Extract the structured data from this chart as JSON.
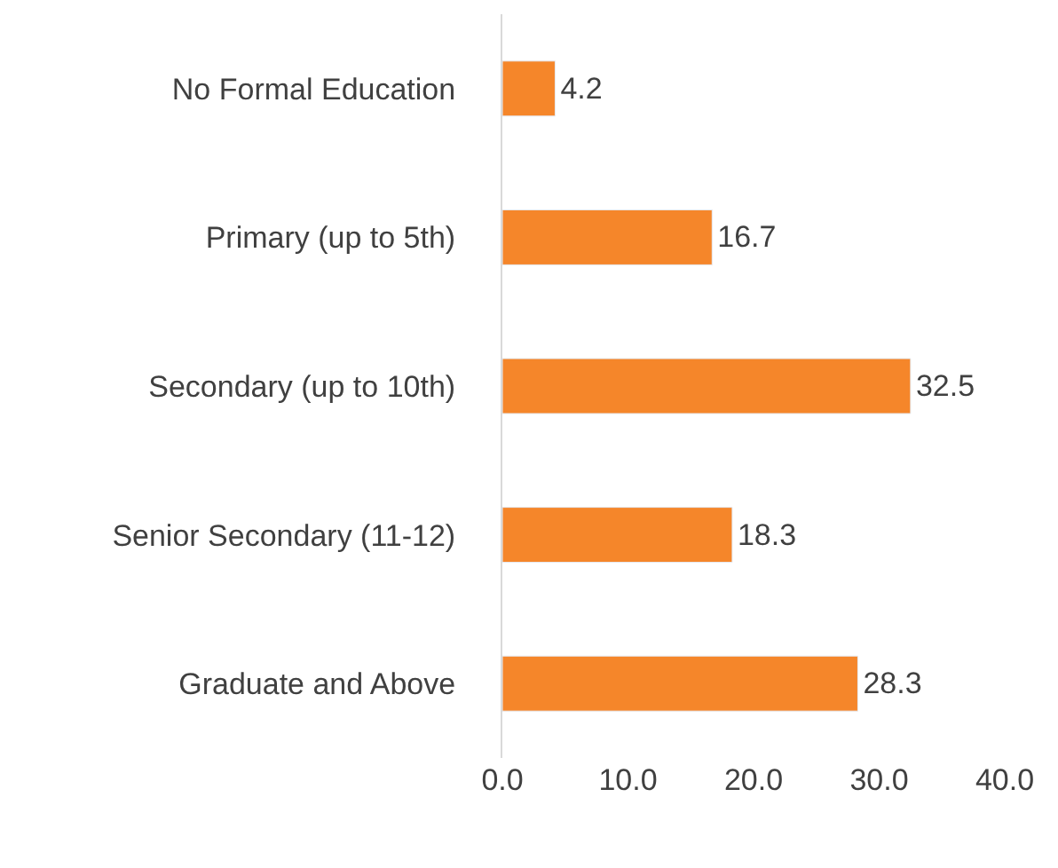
{
  "chart_data": {
    "type": "bar",
    "orientation": "horizontal",
    "categories": [
      "No Formal Education",
      "Primary (up to 5th)",
      "Secondary (up to 10th)",
      "Senior Secondary (11-12)",
      "Graduate and Above"
    ],
    "values": [
      4.2,
      16.7,
      32.5,
      18.3,
      28.3
    ],
    "color": "#f5862a",
    "xlim": [
      0,
      40
    ],
    "xticks": [
      {
        "value": 0,
        "label": "0.0"
      },
      {
        "value": 10,
        "label": "10.0"
      },
      {
        "value": 20,
        "label": "20.0"
      },
      {
        "value": 30,
        "label": "30.0"
      },
      {
        "value": 40,
        "label": "40.0"
      }
    ],
    "data_labels": true
  }
}
